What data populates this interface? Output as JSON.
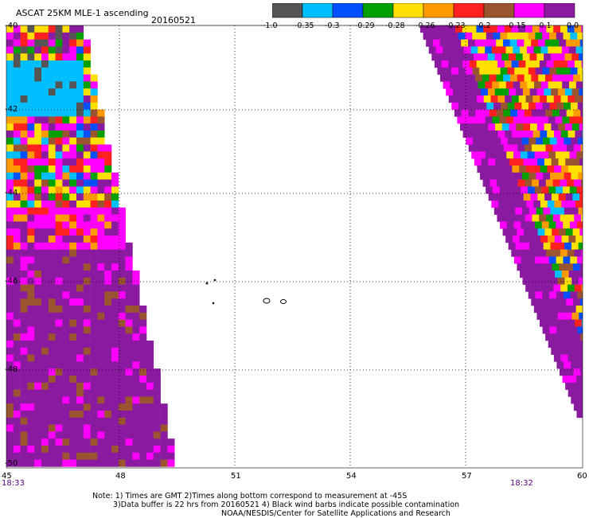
{
  "header": {
    "title": "ASCAT 25KM MLE-1 ascending",
    "date": "20160521"
  },
  "legend": {
    "labels": [
      "-1.0",
      "-0.35",
      "-0.3",
      "-0.29",
      "-0.28",
      "-0.26",
      "-0.23",
      "-0.2",
      "-0.15",
      "-0.1",
      "0.0"
    ],
    "colors": [
      "#555555",
      "#00bfff",
      "#0050ff",
      "#00a000",
      "#ffe000",
      "#ff9a00",
      "#ff2020",
      "#9a5530",
      "#ff00ff",
      "#8a1aa0"
    ]
  },
  "axes": {
    "lat_labels": [
      "-40",
      "-42",
      "-44",
      "-46",
      "-48",
      "-50"
    ],
    "lon_labels": [
      "45",
      "48",
      "51",
      "54",
      "57",
      "60"
    ]
  },
  "times": {
    "left": "18:33",
    "right": "18:32"
  },
  "notes": {
    "line1": "Note: 1) Times are GMT 2)Times along bottom correspond to measurement at -45S",
    "line2": "3)Data buffer is 22 hrs from 20160521 4) Black wind barbs indicate possible contamination",
    "line3": "NOAA/NESDIS/Center for Satellite Applications and Research"
  }
}
